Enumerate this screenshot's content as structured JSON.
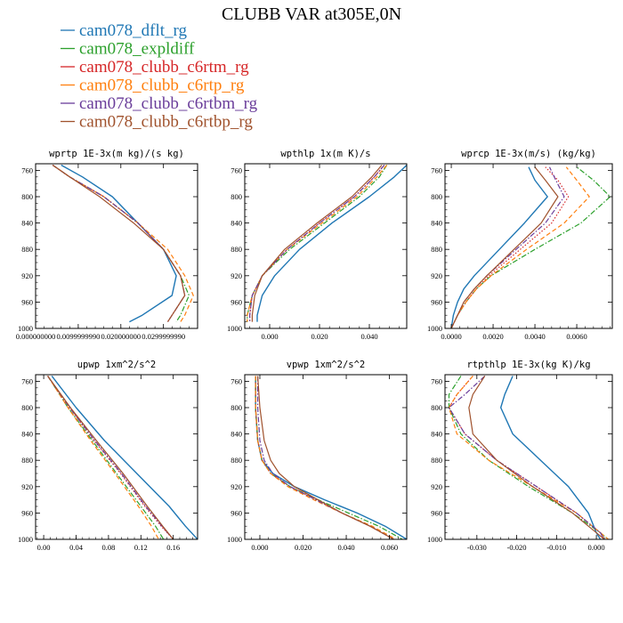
{
  "title": "CLUBB VAR at305E,0N",
  "legend": [
    {
      "name": "cam078_dflt_rg",
      "color": "#1f77b4",
      "dash": "solid"
    },
    {
      "name": "cam078_expldiff",
      "color": "#2ca02c",
      "dash": "dashdot"
    },
    {
      "name": "cam078_clubb_c6rtm_rg",
      "color": "#d62728",
      "dash": "dotted"
    },
    {
      "name": "cam078_clubb_c6rtp_rg",
      "color": "#ff7f0e",
      "dash": "dashed"
    },
    {
      "name": "cam078_clubb_c6rtbm_rg",
      "color": "#6a3d9a",
      "dash": "dashdot"
    },
    {
      "name": "cam078_clubb_c6rtbp_rg",
      "color": "#a0522d",
      "dash": "solid"
    }
  ],
  "chart_data": [
    {
      "type": "line",
      "title": "wprtp  1E-3x(m kg)/(s kg)",
      "xlim": [
        0,
        0.038
      ],
      "ylim": [
        1000,
        750
      ],
      "y_ticks": [
        760,
        800,
        840,
        880,
        920,
        960,
        1000
      ],
      "x_ticks": [
        0,
        0.01,
        0.02,
        0.03
      ],
      "x_tick_labels": [
        "0.000000000",
        "0.0099999990",
        "0.020000000",
        "0.0299999990"
      ],
      "y": [
        752,
        770,
        800,
        840,
        880,
        920,
        950,
        980,
        990
      ],
      "series": [
        {
          "name": "cam078_dflt_rg",
          "values": [
            0.006,
            0.011,
            0.018,
            0.024,
            0.03,
            0.033,
            0.032,
            0.025,
            0.022
          ]
        },
        {
          "name": "cam078_expldiff",
          "values": [
            0.004,
            0.008,
            0.016,
            0.024,
            0.03,
            0.034,
            0.036,
            0.034,
            0.033
          ]
        },
        {
          "name": "cam078_clubb_c6rtm_rg",
          "values": [
            0.004,
            0.008,
            0.016,
            0.024,
            0.03,
            0.034,
            0.035,
            0.032,
            0.031
          ]
        },
        {
          "name": "cam078_clubb_c6rtp_rg",
          "values": [
            0.004,
            0.008,
            0.016,
            0.024,
            0.031,
            0.035,
            0.037,
            0.035,
            0.034
          ]
        },
        {
          "name": "cam078_clubb_c6rtbm_rg",
          "values": [
            0.004,
            0.008,
            0.016,
            0.024,
            0.03,
            0.034,
            0.035,
            0.032,
            0.031
          ]
        },
        {
          "name": "cam078_clubb_c6rtbp_rg",
          "values": [
            0.004,
            0.008,
            0.015,
            0.023,
            0.03,
            0.034,
            0.035,
            0.032,
            0.031
          ]
        }
      ]
    },
    {
      "type": "line",
      "title": "wpthlp  1x(m K)/s",
      "xlim": [
        -0.01,
        0.055
      ],
      "ylim": [
        1000,
        750
      ],
      "y_ticks": [
        760,
        800,
        840,
        880,
        920,
        960,
        1000
      ],
      "x_ticks": [
        0,
        0.02,
        0.04
      ],
      "x_tick_labels": [
        "0.000",
        "0.020",
        "0.040"
      ],
      "y": [
        752,
        770,
        800,
        840,
        880,
        920,
        950,
        980,
        990
      ],
      "series": [
        {
          "name": "cam078_dflt_rg",
          "values": [
            0.055,
            0.05,
            0.04,
            0.025,
            0.012,
            0.002,
            -0.003,
            -0.005,
            -0.005
          ]
        },
        {
          "name": "cam078_expldiff",
          "values": [
            0.047,
            0.044,
            0.036,
            0.022,
            0.008,
            -0.003,
            -0.007,
            -0.009,
            -0.009
          ]
        },
        {
          "name": "cam078_clubb_c6rtm_rg",
          "values": [
            0.046,
            0.042,
            0.034,
            0.02,
            0.007,
            -0.003,
            -0.007,
            -0.008,
            -0.008
          ]
        },
        {
          "name": "cam078_clubb_c6rtp_rg",
          "values": [
            0.047,
            0.043,
            0.035,
            0.021,
            0.007,
            -0.003,
            -0.007,
            -0.009,
            -0.009
          ]
        },
        {
          "name": "cam078_clubb_c6rtbm_rg",
          "values": [
            0.046,
            0.042,
            0.034,
            0.02,
            0.007,
            -0.003,
            -0.007,
            -0.008,
            -0.008
          ]
        },
        {
          "name": "cam078_clubb_c6rtbp_rg",
          "values": [
            0.045,
            0.041,
            0.033,
            0.019,
            0.006,
            -0.003,
            -0.006,
            -0.007,
            -0.007
          ]
        }
      ]
    },
    {
      "type": "line",
      "title": "wprcp  1E-3x(m/s) (kg/kg)",
      "xlim": [
        -0.0003,
        0.0077
      ],
      "ylim": [
        1000,
        750
      ],
      "y_ticks": [
        760,
        800,
        840,
        880,
        920,
        960,
        1000
      ],
      "x_ticks": [
        0,
        0.002,
        0.004,
        0.006
      ],
      "x_tick_labels": [
        "0.0000",
        "0.0020",
        "0.0040",
        "0.0060"
      ],
      "y": [
        1000,
        980,
        960,
        940,
        920,
        880,
        840,
        800,
        775,
        755
      ],
      "series": [
        {
          "name": "cam078_dflt_rg",
          "values": [
            0.0,
            0.0001,
            0.0003,
            0.0006,
            0.0011,
            0.0023,
            0.0035,
            0.0046,
            0.004,
            0.0037
          ]
        },
        {
          "name": "cam078_expldiff",
          "values": [
            0.0,
            0.0003,
            0.0007,
            0.0012,
            0.0019,
            0.004,
            0.0062,
            0.0076,
            0.0068,
            0.006
          ]
        },
        {
          "name": "cam078_clubb_c6rtm_rg",
          "values": [
            0.0,
            0.0003,
            0.0007,
            0.0012,
            0.0018,
            0.0033,
            0.0048,
            0.0056,
            0.0051,
            0.0045
          ]
        },
        {
          "name": "cam078_clubb_c6rtp_rg",
          "values": [
            0.0,
            0.0003,
            0.0007,
            0.0012,
            0.0019,
            0.0036,
            0.0054,
            0.0066,
            0.006,
            0.0055
          ]
        },
        {
          "name": "cam078_clubb_c6rtbm_rg",
          "values": [
            0.0,
            0.0003,
            0.0006,
            0.0011,
            0.0017,
            0.0031,
            0.0045,
            0.0054,
            0.005,
            0.0047
          ]
        },
        {
          "name": "cam078_clubb_c6rtbp_rg",
          "values": [
            0.0,
            0.0003,
            0.0006,
            0.0011,
            0.0017,
            0.003,
            0.0043,
            0.0051,
            0.0045,
            0.004
          ]
        }
      ]
    },
    {
      "type": "line",
      "title": "upwp  1xm^2/s^2",
      "xlim": [
        -0.01,
        0.19
      ],
      "ylim": [
        1000,
        750
      ],
      "y_ticks": [
        760,
        800,
        840,
        880,
        920,
        960,
        1000
      ],
      "x_ticks": [
        0,
        0.04,
        0.08,
        0.12,
        0.16
      ],
      "x_tick_labels": [
        "0.00",
        "0.04",
        "0.08",
        "0.12",
        "0.16"
      ],
      "y": [
        752,
        800,
        850,
        900,
        950,
        980,
        1000
      ],
      "series": [
        {
          "name": "cam078_dflt_rg",
          "values": [
            0.01,
            0.04,
            0.075,
            0.115,
            0.155,
            0.175,
            0.19
          ]
        },
        {
          "name": "cam078_expldiff",
          "values": [
            0.005,
            0.03,
            0.06,
            0.09,
            0.12,
            0.138,
            0.148
          ]
        },
        {
          "name": "cam078_clubb_c6rtm_rg",
          "values": [
            0.005,
            0.032,
            0.062,
            0.095,
            0.125,
            0.145,
            0.16
          ]
        },
        {
          "name": "cam078_clubb_c6rtp_rg",
          "values": [
            0.005,
            0.03,
            0.058,
            0.088,
            0.117,
            0.133,
            0.142
          ]
        },
        {
          "name": "cam078_clubb_c6rtbm_rg",
          "values": [
            0.005,
            0.032,
            0.063,
            0.096,
            0.126,
            0.146,
            0.16
          ]
        },
        {
          "name": "cam078_clubb_c6rtbp_rg",
          "values": [
            0.005,
            0.033,
            0.065,
            0.098,
            0.128,
            0.147,
            0.16
          ]
        }
      ]
    },
    {
      "type": "line",
      "title": "vpwp  1xm^2/s^2",
      "xlim": [
        -0.007,
        0.068
      ],
      "ylim": [
        1000,
        750
      ],
      "y_ticks": [
        760,
        800,
        840,
        880,
        920,
        960,
        1000
      ],
      "x_ticks": [
        0,
        0.02,
        0.04,
        0.06
      ],
      "x_tick_labels": [
        "0.000",
        "0.020",
        "0.040",
        "0.060"
      ],
      "y": [
        752,
        800,
        850,
        880,
        900,
        920,
        940,
        960,
        980,
        1000
      ],
      "series": [
        {
          "name": "cam078_dflt_rg",
          "values": [
            -0.002,
            -0.002,
            -0.001,
            0.001,
            0.006,
            0.016,
            0.03,
            0.045,
            0.058,
            0.068
          ]
        },
        {
          "name": "cam078_expldiff",
          "values": [
            -0.002,
            -0.002,
            -0.001,
            0.001,
            0.005,
            0.014,
            0.027,
            0.041,
            0.055,
            0.066
          ]
        },
        {
          "name": "cam078_clubb_c6rtm_rg",
          "values": [
            -0.002,
            -0.002,
            -0.001,
            0.001,
            0.005,
            0.014,
            0.026,
            0.038,
            0.051,
            0.062
          ]
        },
        {
          "name": "cam078_clubb_c6rtp_rg",
          "values": [
            -0.002,
            -0.002,
            -0.001,
            0.001,
            0.005,
            0.013,
            0.025,
            0.038,
            0.052,
            0.063
          ]
        },
        {
          "name": "cam078_clubb_c6rtbm_rg",
          "values": [
            -0.001,
            -0.001,
            0.0,
            0.002,
            0.006,
            0.014,
            0.026,
            0.038,
            0.051,
            0.062
          ]
        },
        {
          "name": "cam078_clubb_c6rtbp_rg",
          "values": [
            -0.001,
            0.0,
            0.002,
            0.005,
            0.009,
            0.016,
            0.027,
            0.038,
            0.051,
            0.062
          ]
        }
      ]
    },
    {
      "type": "line",
      "title": "rtpthlp  1E-3x(kg K)/kg",
      "xlim": [
        -0.038,
        0.004
      ],
      "ylim": [
        1000,
        750
      ],
      "y_ticks": [
        760,
        800,
        840,
        880,
        920,
        960,
        1000
      ],
      "x_ticks": [
        -0.03,
        -0.02,
        -0.01,
        0
      ],
      "x_tick_labels": [
        "-0.030",
        "-0.020",
        "-0.010",
        "0.000"
      ],
      "y": [
        752,
        780,
        800,
        840,
        880,
        920,
        960,
        990,
        1000
      ],
      "series": [
        {
          "name": "cam078_dflt_rg",
          "values": [
            -0.021,
            -0.023,
            -0.024,
            -0.021,
            -0.014,
            -0.007,
            -0.002,
            0.0,
            0.001
          ]
        },
        {
          "name": "cam078_expldiff",
          "values": [
            -0.034,
            -0.037,
            -0.037,
            -0.034,
            -0.027,
            -0.017,
            -0.006,
            0.001,
            0.003
          ]
        },
        {
          "name": "cam078_clubb_c6rtm_rg",
          "values": [
            -0.031,
            -0.035,
            -0.037,
            -0.033,
            -0.025,
            -0.015,
            -0.005,
            0.001,
            0.002
          ]
        },
        {
          "name": "cam078_clubb_c6rtp_rg",
          "values": [
            -0.031,
            -0.035,
            -0.037,
            -0.035,
            -0.027,
            -0.016,
            -0.005,
            0.001,
            0.003
          ]
        },
        {
          "name": "cam078_clubb_c6rtbm_rg",
          "values": [
            -0.028,
            -0.033,
            -0.037,
            -0.033,
            -0.025,
            -0.015,
            -0.005,
            0.001,
            0.002
          ]
        },
        {
          "name": "cam078_clubb_c6rtbp_rg",
          "values": [
            -0.028,
            -0.031,
            -0.032,
            -0.031,
            -0.025,
            -0.016,
            -0.006,
            0.0,
            0.002
          ]
        }
      ]
    }
  ]
}
